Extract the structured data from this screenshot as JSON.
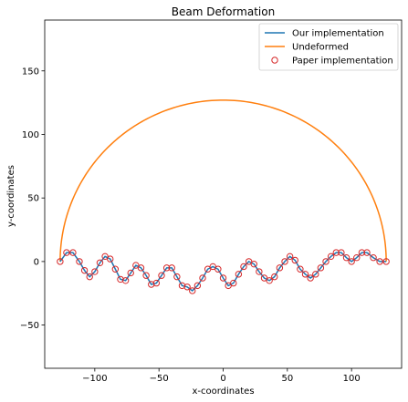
{
  "colors": {
    "our": "#1f77b4",
    "undeformed": "#ff7f0e",
    "paper": "#d62728"
  },
  "chart_data": {
    "type": "line",
    "title": "Beam Deformation",
    "xlabel": "x-coordinates",
    "ylabel": "y-coordinates",
    "xlim": [
      -139,
      139
    ],
    "ylim": [
      -84,
      190
    ],
    "xticks": [
      -100,
      -50,
      0,
      50,
      100
    ],
    "xtick_labels": [
      "−100",
      "−50",
      "0",
      "50",
      "100"
    ],
    "yticks": [
      -50,
      0,
      50,
      100,
      150
    ],
    "ytick_labels": [
      "−50",
      "0",
      "50",
      "100",
      "150"
    ],
    "grid": false,
    "legend_position": "top-right",
    "series": [
      {
        "name": "Our implementation",
        "kind": "line",
        "color_key": "our",
        "x": [
          -127,
          -122,
          -117,
          -112,
          -108,
          -104,
          -100,
          -96,
          -92,
          -88,
          -84,
          -80,
          -76,
          -72,
          -68,
          -64,
          -60,
          -56,
          -52,
          -48,
          -44,
          -40,
          -36,
          -32,
          -28,
          -24,
          -20,
          -16,
          -12,
          -8,
          -4,
          0,
          4,
          8,
          12,
          16,
          20,
          24,
          28,
          32,
          36,
          40,
          44,
          48,
          52,
          56,
          60,
          64,
          68,
          72,
          76,
          80,
          84,
          88,
          92,
          96,
          100,
          104,
          108,
          112,
          117,
          122,
          127
        ],
        "y": [
          0,
          7,
          7,
          0,
          -7,
          -12,
          -8,
          -1,
          4,
          2,
          -6,
          -14,
          -15,
          -9,
          -3,
          -5,
          -11,
          -18,
          -17,
          -11,
          -5,
          -5,
          -12,
          -19,
          -20,
          -23,
          -19,
          -13,
          -6,
          -4,
          -6,
          -13,
          -19,
          -17,
          -10,
          -4,
          0,
          -2,
          -8,
          -13,
          -15,
          -12,
          -5,
          0,
          4,
          1,
          -6,
          -10,
          -13,
          -10,
          -5,
          0,
          4,
          7,
          7,
          3,
          0,
          3,
          7,
          7,
          3,
          0,
          0
        ]
      },
      {
        "name": "Undeformed",
        "kind": "line",
        "color_key": "undeformed",
        "shape": "semicircle",
        "center": [
          0,
          0
        ],
        "radius": 127
      },
      {
        "name": "Paper implementation",
        "kind": "scatter",
        "marker": "circle-open",
        "color_key": "paper"
      }
    ]
  }
}
